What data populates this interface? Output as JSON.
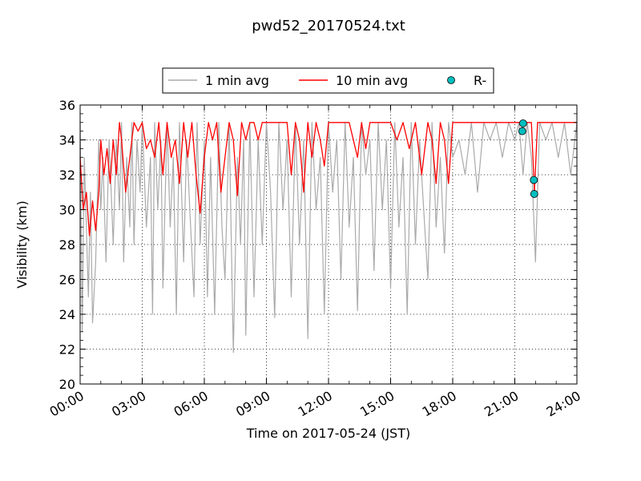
{
  "chart_data": {
    "type": "line",
    "title": "pwd52_20170524.txt",
    "xlabel": "Time on 2017-05-24 (JST)",
    "ylabel": "Visibility (km)",
    "x_unit": "hours",
    "xlim": [
      0,
      24
    ],
    "ylim": [
      20,
      36
    ],
    "x_ticks": [
      {
        "value": 0,
        "label": "00:00"
      },
      {
        "value": 3,
        "label": "03:00"
      },
      {
        "value": 6,
        "label": "06:00"
      },
      {
        "value": 9,
        "label": "09:00"
      },
      {
        "value": 12,
        "label": "12:00"
      },
      {
        "value": 15,
        "label": "15:00"
      },
      {
        "value": 18,
        "label": "18:00"
      },
      {
        "value": 21,
        "label": "21:00"
      },
      {
        "value": 24,
        "label": "24:00"
      }
    ],
    "y_ticks": [
      {
        "value": 20,
        "label": "20"
      },
      {
        "value": 22,
        "label": "22"
      },
      {
        "value": 24,
        "label": "24"
      },
      {
        "value": 26,
        "label": "26"
      },
      {
        "value": 28,
        "label": "28"
      },
      {
        "value": 30,
        "label": "30"
      },
      {
        "value": 32,
        "label": "32"
      },
      {
        "value": 34,
        "label": "34"
      },
      {
        "value": 36,
        "label": "36"
      }
    ],
    "grid": true,
    "legend_position": "top-center outside",
    "series": [
      {
        "name": "1 min avg",
        "kind": "line",
        "color": "#aaaaaa",
        "x": [
          0,
          0.1,
          0.2,
          0.3,
          0.4,
          0.5,
          0.6,
          0.75,
          0.9,
          1.0,
          1.1,
          1.25,
          1.4,
          1.5,
          1.6,
          1.75,
          1.9,
          2.0,
          2.1,
          2.25,
          2.4,
          2.5,
          2.6,
          2.75,
          2.9,
          3.0,
          3.2,
          3.4,
          3.5,
          3.6,
          3.75,
          3.9,
          4.0,
          4.2,
          4.35,
          4.5,
          4.65,
          4.8,
          5.0,
          5.15,
          5.3,
          5.5,
          5.65,
          5.8,
          6.0,
          6.15,
          6.3,
          6.5,
          6.7,
          6.85,
          7.0,
          7.2,
          7.4,
          7.6,
          7.75,
          7.9,
          8.0,
          8.2,
          8.4,
          8.6,
          8.8,
          9.0,
          9.2,
          9.4,
          9.6,
          9.8,
          10.0,
          10.2,
          10.4,
          10.6,
          10.8,
          11.0,
          11.2,
          11.4,
          11.6,
          11.8,
          12.0,
          12.2,
          12.4,
          12.6,
          12.8,
          13.0,
          13.2,
          13.4,
          13.6,
          13.8,
          14.0,
          14.2,
          14.4,
          14.6,
          14.8,
          15.0,
          15.2,
          15.4,
          15.6,
          15.8,
          16.0,
          16.2,
          16.4,
          16.6,
          16.8,
          17.0,
          17.2,
          17.4,
          17.6,
          17.8,
          18.0,
          18.3,
          18.6,
          18.9,
          19.2,
          19.5,
          19.8,
          20.1,
          20.4,
          20.7,
          21.0,
          21.2,
          21.4,
          21.6,
          21.8,
          22.0,
          22.2,
          22.5,
          22.8,
          23.1,
          23.4,
          23.7,
          24.0
        ],
        "y": [
          35,
          23,
          33,
          29,
          25,
          31,
          23.5,
          27,
          34,
          30,
          33,
          27,
          34,
          31,
          28,
          34,
          30,
          35,
          27,
          33,
          29,
          35,
          28,
          34,
          31,
          35,
          29,
          33,
          24,
          35,
          30,
          34,
          25.5,
          35,
          29,
          33,
          24,
          35,
          27,
          34,
          30,
          25,
          35,
          28,
          34,
          25,
          33,
          24,
          35,
          29,
          26,
          35,
          21.8,
          33,
          28,
          34,
          22.8,
          35,
          25,
          34,
          28,
          35,
          31,
          23.8,
          35,
          30,
          34,
          25,
          35,
          28,
          34,
          22.6,
          35,
          30,
          33,
          24,
          35,
          31,
          34,
          26,
          35,
          29,
          33,
          24.2,
          35,
          32,
          34,
          26.5,
          35,
          30,
          34,
          25.5,
          35,
          29,
          33,
          24,
          35,
          28,
          34,
          30,
          26,
          35,
          29,
          33,
          27.5,
          35,
          33,
          34,
          32,
          35,
          31,
          35,
          34,
          35,
          33,
          35,
          34,
          35,
          32,
          35,
          33,
          27,
          35,
          34,
          35,
          33,
          35,
          32,
          35
        ]
      },
      {
        "name": "10 min avg",
        "kind": "line",
        "color": "#ff0000",
        "x": [
          0,
          0.15,
          0.3,
          0.45,
          0.6,
          0.75,
          0.9,
          1.0,
          1.15,
          1.3,
          1.45,
          1.6,
          1.75,
          1.9,
          2.0,
          2.2,
          2.4,
          2.6,
          2.8,
          3.0,
          3.2,
          3.4,
          3.6,
          3.8,
          4.0,
          4.2,
          4.4,
          4.6,
          4.8,
          5.0,
          5.2,
          5.4,
          5.6,
          5.8,
          6.0,
          6.2,
          6.4,
          6.6,
          6.8,
          7.0,
          7.2,
          7.4,
          7.6,
          7.8,
          8.0,
          8.2,
          8.4,
          8.6,
          8.8,
          9.0,
          9.5,
          10.0,
          10.2,
          10.4,
          10.6,
          10.8,
          11.0,
          11.2,
          11.4,
          11.6,
          11.8,
          12.0,
          12.5,
          13.0,
          13.4,
          13.6,
          13.8,
          14.0,
          14.2,
          14.5,
          15.0,
          15.3,
          15.6,
          15.9,
          16.2,
          16.5,
          16.8,
          17.0,
          17.2,
          17.4,
          17.6,
          17.8,
          18.0,
          19.0,
          20.0,
          21.0,
          21.5,
          21.8,
          21.95,
          22.1,
          22.3,
          23.0,
          24.0
        ],
        "y": [
          33,
          30,
          31,
          28.5,
          30.5,
          28.8,
          31,
          34,
          32,
          33.5,
          31.5,
          34,
          32,
          35,
          34,
          31,
          33,
          35,
          34.5,
          35,
          33.5,
          34,
          33,
          35,
          32,
          35,
          33,
          34,
          31.5,
          35,
          33,
          35,
          32,
          29.8,
          33,
          35,
          34,
          35,
          31,
          33,
          35,
          34,
          30.8,
          35,
          34,
          35,
          35,
          34,
          35,
          35,
          35,
          35,
          32,
          35,
          34,
          31,
          35,
          33,
          35,
          34,
          32.5,
          35,
          35,
          35,
          33,
          35,
          33.5,
          35,
          35,
          35,
          35,
          34,
          35,
          33.5,
          35,
          32,
          35,
          34,
          31.5,
          35,
          34,
          31.5,
          35,
          35,
          35,
          35,
          35,
          35,
          31,
          35,
          35,
          35,
          35
        ]
      },
      {
        "name": "R-",
        "kind": "scatter",
        "color": "#00bfbf",
        "x": [
          21.4,
          21.36,
          21.92,
          21.94
        ],
        "y": [
          34.95,
          34.5,
          31.7,
          30.9
        ]
      }
    ]
  }
}
